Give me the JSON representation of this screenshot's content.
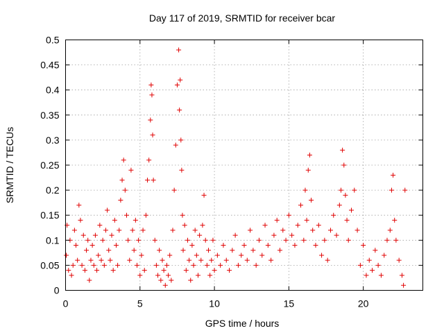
{
  "chart_data": {
    "type": "scatter",
    "title": "Day 117 of 2019, SRMTID for receiver bcar",
    "xlabel": "GPS time / hours",
    "ylabel": "SRMTID / TECUs",
    "xlim": [
      0,
      24
    ],
    "ylim": [
      0,
      0.5
    ],
    "x_ticks": [
      0,
      5,
      10,
      15,
      20
    ],
    "x_tick_labels": [
      "0",
      "5",
      "10",
      "15",
      "20"
    ],
    "y_ticks": [
      0,
      0.05,
      0.1,
      0.15,
      0.2,
      0.25,
      0.3,
      0.35,
      0.4,
      0.45,
      0.5
    ],
    "y_tick_labels": [
      "0",
      "0.05",
      "0.1",
      "0.15",
      "0.2",
      "0.25",
      "0.3",
      "0.35",
      "0.4",
      "0.45",
      "0.5"
    ],
    "grid": true,
    "marker": "+",
    "colors": {
      "points": "#e00000",
      "grid": "#a0a0a0",
      "axis": "#000000"
    },
    "series": [
      {
        "name": "SRMTID",
        "x": [
          0.05,
          0.1,
          0.2,
          0.3,
          0.4,
          0.5,
          0.6,
          0.7,
          0.8,
          0.9,
          1.0,
          1.1,
          1.2,
          1.3,
          1.4,
          1.5,
          1.6,
          1.7,
          1.8,
          1.9,
          2.0,
          2.1,
          2.2,
          2.3,
          2.4,
          2.5,
          2.6,
          2.7,
          2.8,
          2.9,
          3.0,
          3.1,
          3.2,
          3.3,
          3.4,
          3.5,
          3.6,
          3.7,
          3.8,
          3.9,
          4.0,
          4.1,
          4.2,
          4.3,
          4.4,
          4.5,
          4.6,
          4.7,
          4.8,
          4.9,
          5.0,
          5.1,
          5.2,
          5.3,
          5.4,
          5.5,
          5.6,
          5.7,
          5.75,
          5.8,
          5.85,
          5.9,
          6.0,
          6.1,
          6.2,
          6.3,
          6.4,
          6.5,
          6.6,
          6.7,
          6.8,
          6.9,
          7.0,
          7.1,
          7.2,
          7.3,
          7.4,
          7.5,
          7.6,
          7.65,
          7.7,
          7.75,
          7.8,
          7.85,
          7.9,
          8.0,
          8.1,
          8.2,
          8.3,
          8.4,
          8.5,
          8.6,
          8.7,
          8.8,
          8.9,
          9.0,
          9.1,
          9.2,
          9.3,
          9.4,
          9.5,
          9.6,
          9.7,
          9.8,
          9.9,
          10.0,
          10.2,
          10.4,
          10.6,
          10.8,
          11.0,
          11.2,
          11.4,
          11.6,
          11.8,
          12.0,
          12.2,
          12.4,
          12.6,
          12.8,
          13.0,
          13.2,
          13.4,
          13.6,
          13.8,
          14.0,
          14.2,
          14.4,
          14.6,
          14.8,
          15.0,
          15.2,
          15.4,
          15.6,
          15.8,
          16.0,
          16.1,
          16.2,
          16.3,
          16.4,
          16.5,
          16.6,
          16.8,
          17.0,
          17.2,
          17.4,
          17.6,
          17.8,
          18.0,
          18.2,
          18.4,
          18.5,
          18.6,
          18.7,
          18.8,
          18.9,
          19.0,
          19.2,
          19.4,
          19.6,
          19.8,
          20.0,
          20.2,
          20.4,
          20.6,
          20.8,
          21.0,
          21.2,
          21.4,
          21.6,
          21.8,
          21.9,
          22.0,
          22.1,
          22.2,
          22.4,
          22.6,
          22.7,
          22.8
        ],
        "y": [
          0.07,
          0.13,
          0.04,
          0.1,
          0.03,
          0.05,
          0.12,
          0.09,
          0.06,
          0.17,
          0.14,
          0.05,
          0.11,
          0.04,
          0.08,
          0.1,
          0.02,
          0.06,
          0.09,
          0.05,
          0.11,
          0.04,
          0.07,
          0.13,
          0.06,
          0.1,
          0.05,
          0.12,
          0.16,
          0.08,
          0.06,
          0.11,
          0.04,
          0.14,
          0.09,
          0.05,
          0.12,
          0.18,
          0.22,
          0.26,
          0.2,
          0.15,
          0.1,
          0.06,
          0.24,
          0.12,
          0.08,
          0.14,
          0.05,
          0.1,
          0.03,
          0.07,
          0.12,
          0.04,
          0.15,
          0.22,
          0.26,
          0.34,
          0.41,
          0.39,
          0.31,
          0.22,
          0.1,
          0.05,
          0.03,
          0.08,
          0.02,
          0.06,
          0.04,
          0.01,
          0.05,
          0.03,
          0.07,
          0.02,
          0.12,
          0.2,
          0.29,
          0.41,
          0.48,
          0.36,
          0.42,
          0.3,
          0.24,
          0.15,
          0.08,
          0.13,
          0.04,
          0.1,
          0.06,
          0.02,
          0.09,
          0.05,
          0.12,
          0.07,
          0.03,
          0.11,
          0.06,
          0.13,
          0.19,
          0.1,
          0.05,
          0.08,
          0.03,
          0.06,
          0.1,
          0.04,
          0.07,
          0.05,
          0.09,
          0.06,
          0.04,
          0.08,
          0.11,
          0.05,
          0.07,
          0.09,
          0.06,
          0.12,
          0.08,
          0.05,
          0.1,
          0.07,
          0.13,
          0.09,
          0.06,
          0.11,
          0.14,
          0.08,
          0.12,
          0.1,
          0.15,
          0.11,
          0.09,
          0.13,
          0.17,
          0.1,
          0.2,
          0.14,
          0.24,
          0.27,
          0.18,
          0.12,
          0.09,
          0.13,
          0.07,
          0.1,
          0.06,
          0.12,
          0.15,
          0.11,
          0.17,
          0.2,
          0.28,
          0.25,
          0.19,
          0.14,
          0.1,
          0.16,
          0.2,
          0.12,
          0.05,
          0.09,
          0.03,
          0.06,
          0.04,
          0.08,
          0.05,
          0.03,
          0.07,
          0.1,
          0.12,
          0.2,
          0.23,
          0.14,
          0.1,
          0.06,
          0.03,
          0.01,
          0.2
        ]
      }
    ]
  }
}
